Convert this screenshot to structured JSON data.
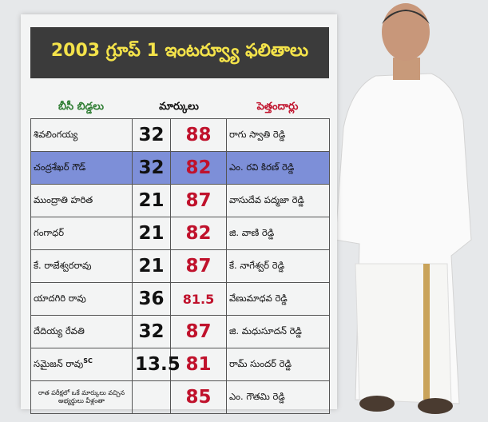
{
  "title": "2003 గ్రూప్ 1 ఇంటర్వ్యూ ఫలితాలు",
  "table": {
    "headers": [
      "బీసీ బిడ్డలు",
      "మార్కులు",
      "పెత్తందార్లు"
    ],
    "header_colors": [
      "#2e7d32",
      "#111111",
      "#c0122c"
    ],
    "rows": [
      {
        "bc_name": "శివలింగయ్య",
        "bc_marks": 32,
        "oc_marks": 88,
        "oc_name": "రాగు స్వాతి రెడ్డి"
      },
      {
        "bc_name": "చంద్రశేఖర్ గౌడ్",
        "bc_marks": 32,
        "oc_marks": 82,
        "oc_name": "ఎం. రవి కిరణ్ రెడ్డి",
        "color": "#7d8fd8"
      },
      {
        "bc_name": "ముంద్రాతి హరిత",
        "bc_marks": 21,
        "oc_marks": 87,
        "oc_name": "వాసుదేవ పద్మజా రెడ్డి"
      },
      {
        "bc_name": "గంగాధర్",
        "bc_marks": 21,
        "oc_marks": 82,
        "oc_name": "జి. వాణి రెడ్డి"
      },
      {
        "bc_name": "కే. రాజేశ్వరరావు",
        "bc_marks": 21,
        "oc_marks": 87,
        "oc_name": "కే. నాగేశ్వర్ రెడ్డి"
      },
      {
        "bc_name": "యాదగిరి రావు",
        "bc_marks": 36,
        "oc_marks": 81.5,
        "oc_name": "వేణుమాధవ రెడ్డి"
      },
      {
        "bc_name": "దేదియ్య రేవతి",
        "bc_marks": 32,
        "oc_marks": 87,
        "oc_name": "జి. మధుసూదన్ రెడ్డి"
      },
      {
        "bc_name": "సమైజన్ రావు",
        "tag": "SC",
        "bc_marks": 13.5,
        "oc_marks": 81,
        "oc_name": "రామ్ సుందర్ రెడ్డి"
      },
      {
        "bc_name": "రాత పరీక్షలో ఒకే మార్కులు వచ్చిన అభ్యర్థులు వీళ్లంతా",
        "oc_marks": 85,
        "oc_name": "ఎం. గౌతమి రెడ్డి"
      }
    ]
  }
}
